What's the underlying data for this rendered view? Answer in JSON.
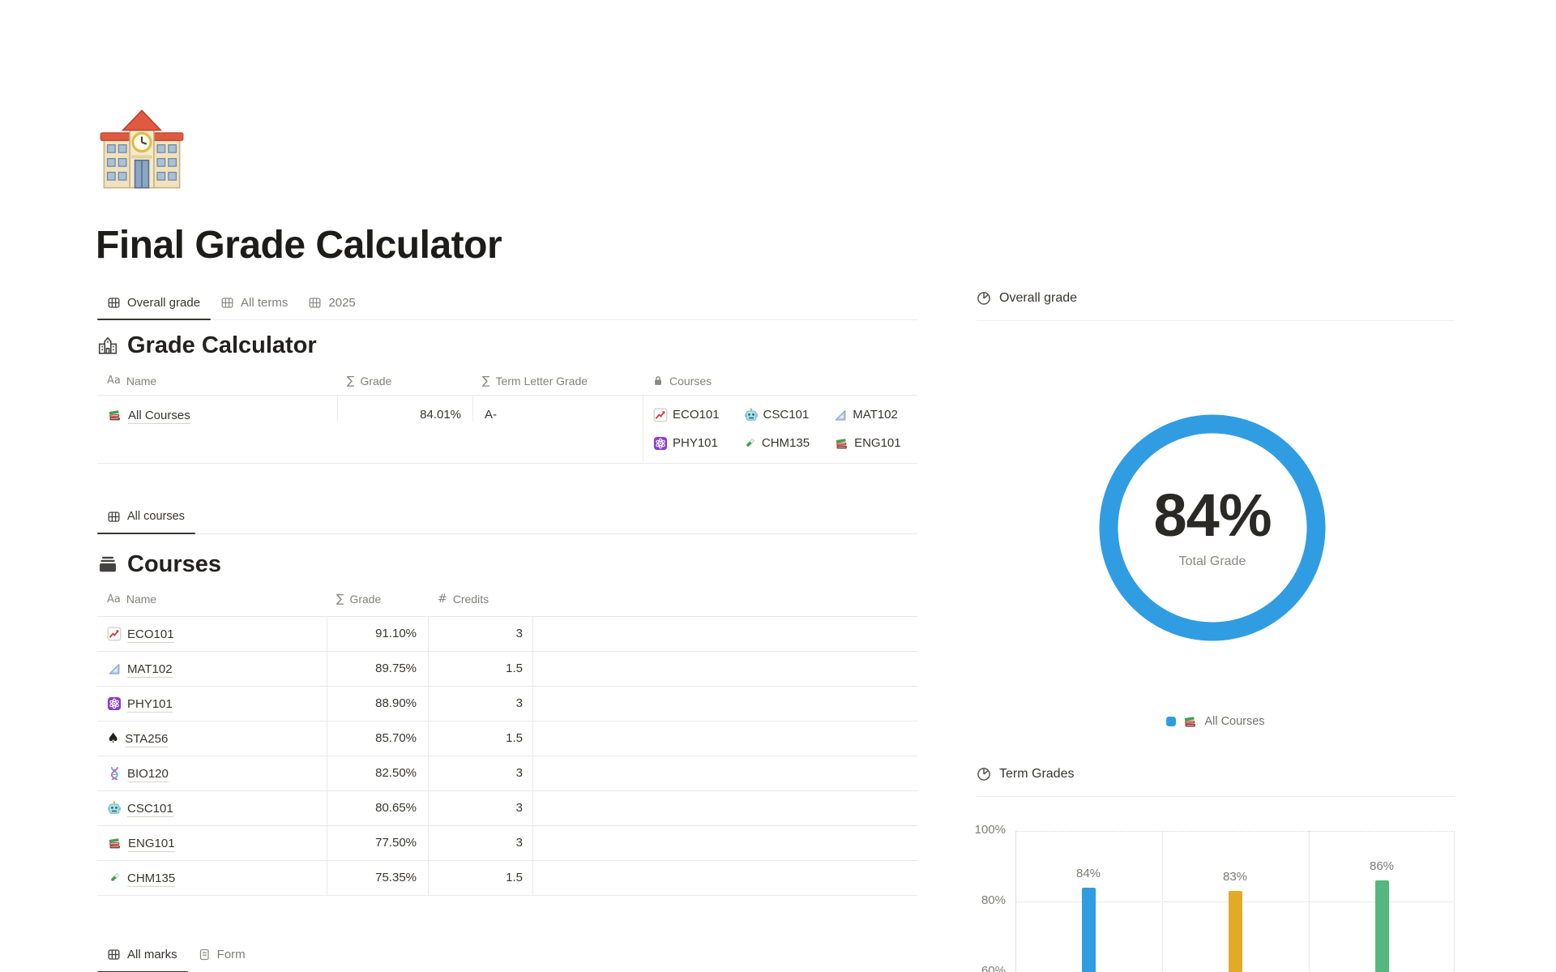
{
  "page": {
    "icon": "school-building",
    "title": "Final Grade Calculator"
  },
  "top_tabs": [
    {
      "label": "Overall grade",
      "icon": "table",
      "active": true
    },
    {
      "label": "All terms",
      "icon": "table",
      "active": false
    },
    {
      "label": "2025",
      "icon": "table",
      "active": false
    }
  ],
  "grade_calculator": {
    "title": "Grade Calculator",
    "icon": "school-outline",
    "columns": {
      "name": {
        "label": "Name",
        "icon": "text-property"
      },
      "grade": {
        "label": "Grade",
        "icon": "formula-property"
      },
      "term_letter_grade": {
        "label": "Term Letter Grade",
        "icon": "formula-property"
      },
      "courses": {
        "label": "Courses",
        "icon": "lock-property"
      }
    },
    "row": {
      "name": "All Courses",
      "name_icon": "books",
      "grade": "84.01%",
      "term_letter_grade": "A-",
      "courses": [
        {
          "label": "ECO101",
          "icon": "chart-up"
        },
        {
          "label": "CSC101",
          "icon": "robot"
        },
        {
          "label": "MAT102",
          "icon": "triangle-ruler"
        },
        {
          "label": "PHY101",
          "icon": "atom"
        },
        {
          "label": "CHM135",
          "icon": "test-tube"
        },
        {
          "label": "ENG101",
          "icon": "books"
        }
      ]
    }
  },
  "courses": {
    "view_tab": {
      "label": "All courses",
      "icon": "table"
    },
    "title": "Courses",
    "icon": "database",
    "columns": {
      "name": {
        "label": "Name",
        "icon": "text-property"
      },
      "grade": {
        "label": "Grade",
        "icon": "formula-property"
      },
      "credits": {
        "label": "Credits",
        "icon": "number-property"
      }
    },
    "rows": [
      {
        "icon": "chart-up",
        "name": "ECO101",
        "grade": "91.10%",
        "credits": "3"
      },
      {
        "icon": "triangle-ruler",
        "name": "MAT102",
        "grade": "89.75%",
        "credits": "1.5"
      },
      {
        "icon": "atom",
        "name": "PHY101",
        "grade": "88.90%",
        "credits": "3"
      },
      {
        "icon": "spade",
        "name": "STA256",
        "grade": "85.70%",
        "credits": "1.5"
      },
      {
        "icon": "dna",
        "name": "BIO120",
        "grade": "82.50%",
        "credits": "3"
      },
      {
        "icon": "robot",
        "name": "CSC101",
        "grade": "80.65%",
        "credits": "3"
      },
      {
        "icon": "books",
        "name": "ENG101",
        "grade": "77.50%",
        "credits": "3"
      },
      {
        "icon": "test-tube",
        "name": "CHM135",
        "grade": "75.35%",
        "credits": "1.5"
      }
    ]
  },
  "bottom_tabs": [
    {
      "label": "All marks",
      "icon": "table",
      "active": true
    },
    {
      "label": "Form",
      "icon": "form",
      "active": false
    }
  ],
  "overall_grade_chart": {
    "header": "Overall grade",
    "icon": "pie-chart",
    "center_value": "84%",
    "center_label": "Total Grade",
    "legend": {
      "icon": "books",
      "label": "All Courses"
    }
  },
  "term_grades_chart": {
    "header": "Term Grades",
    "icon": "pie-chart"
  },
  "chart_data": [
    {
      "type": "pie",
      "title": "Overall grade",
      "labels": [
        "All Courses"
      ],
      "values": [
        84
      ],
      "center_text": "84%",
      "center_subtext": "Total Grade",
      "colors": [
        "#309de2"
      ],
      "legend_position": "bottom"
    },
    {
      "type": "bar",
      "title": "Term Grades",
      "categories": [
        "",
        "",
        ""
      ],
      "values": [
        84,
        83,
        86
      ],
      "data_labels": [
        "84%",
        "83%",
        "86%"
      ],
      "colors": [
        "#309de2",
        "#e2ab27",
        "#54b87c"
      ],
      "ylim": [
        60,
        100
      ],
      "yticks": [
        "100%",
        "80%",
        "60%"
      ],
      "grid": true,
      "legend_position": "none"
    }
  ],
  "colors": {
    "accent_blue": "#309de2",
    "accent_yellow": "#e2ab27",
    "accent_green": "#54b87c",
    "text_primary": "#37352f",
    "text_secondary": "#82817c",
    "divider": "#e9e9e7"
  }
}
